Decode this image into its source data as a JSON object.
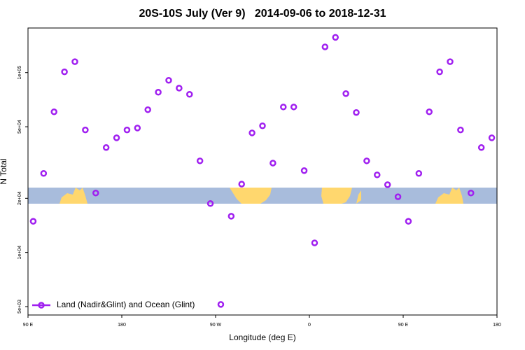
{
  "chart_data": {
    "type": "scatter",
    "title": "20S-10S July (Ver 9)   2014-09-06 to 2018-12-31",
    "x_label": "Longitude (deg E)",
    "y_label": "N Total",
    "x": [
      95,
      105,
      115,
      125,
      135,
      145,
      155,
      165,
      175,
      185,
      195,
      205,
      215,
      225,
      235,
      245,
      255,
      265,
      275,
      285,
      295,
      305,
      315,
      325,
      335,
      345,
      355,
      365,
      375,
      385,
      395,
      405,
      415,
      425,
      435,
      445,
      455,
      465,
      475,
      485,
      495,
      505,
      515,
      525,
      535
    ],
    "series": [
      {
        "name": "Land (Nadir&Glint) and Ocean (Glint)",
        "color": "#a020f0",
        "values": [
          14900,
          27500,
          60500,
          101000,
          115000,
          48000,
          21400,
          38300,
          43400,
          48000,
          49200,
          62200,
          77800,
          90600,
          82000,
          75700,
          32300,
          18700,
          5140,
          15900,
          24000,
          46200,
          50600,
          31400,
          64400,
          64400,
          28500,
          11300,
          139000,
          157000,
          76400,
          60000,
          32300,
          27000,
          23800,
          20400,
          14900,
          27500,
          60500,
          101000,
          115000,
          48000,
          21400,
          38300,
          43400
        ]
      }
    ],
    "xlim": [
      90,
      540
    ],
    "xticks": [
      {
        "value": 90,
        "label": "90 E"
      },
      {
        "value": 180,
        "label": "180"
      },
      {
        "value": 270,
        "label": "90 W"
      },
      {
        "value": 360,
        "label": "0"
      },
      {
        "value": 450,
        "label": "90 E"
      },
      {
        "value": 540,
        "label": "180"
      }
    ],
    "ylim": [
      4490,
      177000
    ],
    "ylog": true,
    "yticks": [
      {
        "value": 5000,
        "label": "5e+03"
      },
      {
        "value": 10000,
        "label": "1e+04"
      },
      {
        "value": 20000,
        "label": "2e+04"
      },
      {
        "value": 50000,
        "label": "5e+04"
      },
      {
        "value": 100000,
        "label": "1e+05"
      }
    ],
    "legend": "lower left"
  }
}
